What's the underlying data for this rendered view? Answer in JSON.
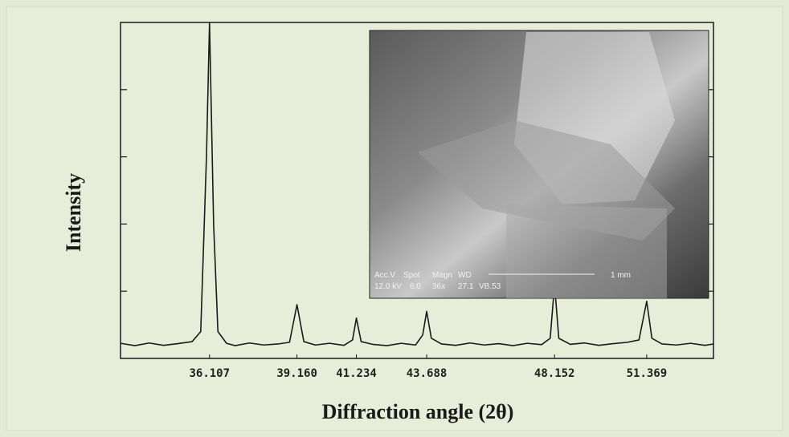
{
  "chart_data": {
    "type": "line",
    "xlabel": "Diffraction angle (2θ)",
    "ylabel": "Intensity",
    "xlim": [
      33,
      53.7
    ],
    "ylim": [
      0,
      100
    ],
    "xticks": [
      36.107,
      {
        "value": 39.16,
        "label": "39.160"
      },
      41.234,
      43.688,
      48.152,
      51.369
    ],
    "yticks": [
      20,
      40,
      60,
      80
    ],
    "color": "#1a1a1a",
    "x": [
      33.0,
      33.5,
      34.0,
      34.5,
      35.0,
      35.5,
      35.8,
      36.0,
      36.107,
      36.25,
      36.4,
      36.7,
      37.0,
      37.5,
      38.0,
      38.5,
      38.9,
      39.16,
      39.4,
      39.8,
      40.3,
      40.8,
      41.1,
      41.234,
      41.4,
      41.8,
      42.3,
      42.8,
      43.3,
      43.55,
      43.688,
      43.85,
      44.2,
      44.7,
      45.2,
      45.7,
      46.2,
      46.7,
      47.2,
      47.7,
      48.0,
      48.152,
      48.3,
      48.7,
      49.2,
      49.7,
      50.2,
      50.7,
      51.1,
      51.369,
      51.55,
      51.9,
      52.4,
      52.9,
      53.4,
      53.7
    ],
    "values": [
      4.5,
      3.8,
      4.6,
      3.9,
      4.4,
      5.0,
      8,
      60,
      100,
      40,
      8,
      4.5,
      3.8,
      4.6,
      4.0,
      4.3,
      4.8,
      16,
      5,
      4.0,
      4.5,
      3.9,
      5.5,
      12,
      5,
      4.2,
      3.8,
      4.5,
      4.0,
      7,
      14,
      6,
      4.3,
      3.9,
      4.6,
      4.0,
      4.4,
      3.8,
      4.5,
      4.1,
      6,
      22,
      6,
      4.2,
      4.6,
      3.9,
      4.4,
      4.8,
      5.5,
      17,
      6,
      4.3,
      4.0,
      4.5,
      3.9,
      4.3
    ],
    "inset": {
      "labels": [
        "Acc.V",
        "Spot",
        "Magn",
        "WD",
        "12.0 kV",
        "6.0",
        "36x",
        "27.1",
        "VB.53",
        "1 mm"
      ]
    }
  }
}
